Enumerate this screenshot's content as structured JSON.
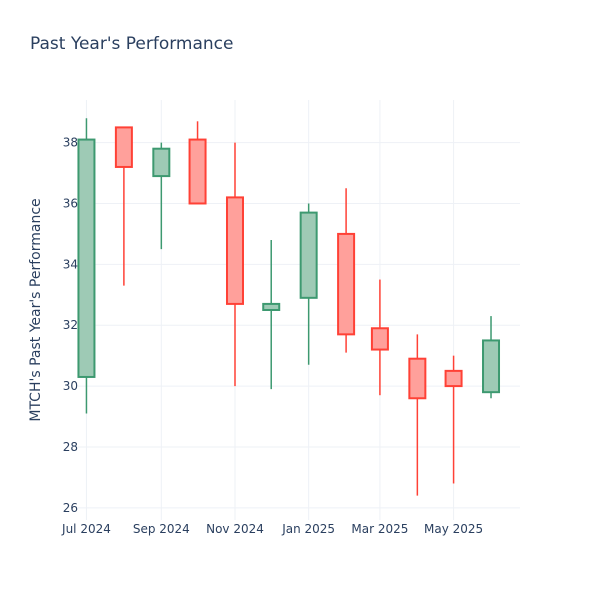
{
  "title": "Past Year's Performance",
  "colors": {
    "increasing_line": "#3d9970",
    "increasing_fill": "#9ecab5",
    "decreasing_line": "#ff4136",
    "decreasing_fill": "#ffa09b",
    "grid": "#eef1f6",
    "text": "#2a3f5f"
  },
  "chart_data": {
    "type": "candlestick",
    "title": "Past Year's Performance",
    "xlabel": "",
    "ylabel": "MTCH's Past Year's Performance",
    "ylim": [
      25.6,
      39.4
    ],
    "yticks": [
      26,
      28,
      30,
      32,
      34,
      36,
      38
    ],
    "xlim": [
      "2024-06-24",
      "2025-06-25"
    ],
    "xticks": [
      {
        "date": "2024-07-01",
        "label": "Jul 2024"
      },
      {
        "date": "2024-09-01",
        "label": "Sep 2024"
      },
      {
        "date": "2024-11-01",
        "label": "Nov 2024"
      },
      {
        "date": "2025-01-01",
        "label": "Jan 2025"
      },
      {
        "date": "2025-03-01",
        "label": "Mar 2025"
      },
      {
        "date": "2025-05-01",
        "label": "May 2025"
      }
    ],
    "grid": true,
    "candles": [
      {
        "date": "2024-07-01",
        "open": 30.3,
        "high": 38.8,
        "low": 29.1,
        "close": 38.1
      },
      {
        "date": "2024-08-01",
        "open": 38.5,
        "high": 38.5,
        "low": 33.3,
        "close": 37.2
      },
      {
        "date": "2024-09-01",
        "open": 36.9,
        "high": 38.0,
        "low": 34.5,
        "close": 37.8
      },
      {
        "date": "2024-10-01",
        "open": 38.1,
        "high": 38.7,
        "low": 36.0,
        "close": 36.0
      },
      {
        "date": "2024-11-01",
        "open": 36.2,
        "high": 38.0,
        "low": 30.0,
        "close": 32.7
      },
      {
        "date": "2024-12-01",
        "open": 32.5,
        "high": 34.8,
        "low": 29.9,
        "close": 32.7
      },
      {
        "date": "2025-01-01",
        "open": 32.9,
        "high": 36.0,
        "low": 30.7,
        "close": 35.7
      },
      {
        "date": "2025-02-01",
        "open": 35.0,
        "high": 36.5,
        "low": 31.1,
        "close": 31.7
      },
      {
        "date": "2025-03-01",
        "open": 31.9,
        "high": 33.5,
        "low": 29.7,
        "close": 31.2
      },
      {
        "date": "2025-04-01",
        "open": 30.9,
        "high": 31.7,
        "low": 26.4,
        "close": 29.6
      },
      {
        "date": "2025-05-01",
        "open": 30.5,
        "high": 31.0,
        "low": 26.8,
        "close": 30.0
      },
      {
        "date": "2025-06-01",
        "open": 29.8,
        "high": 32.3,
        "low": 29.6,
        "close": 31.5
      }
    ]
  }
}
